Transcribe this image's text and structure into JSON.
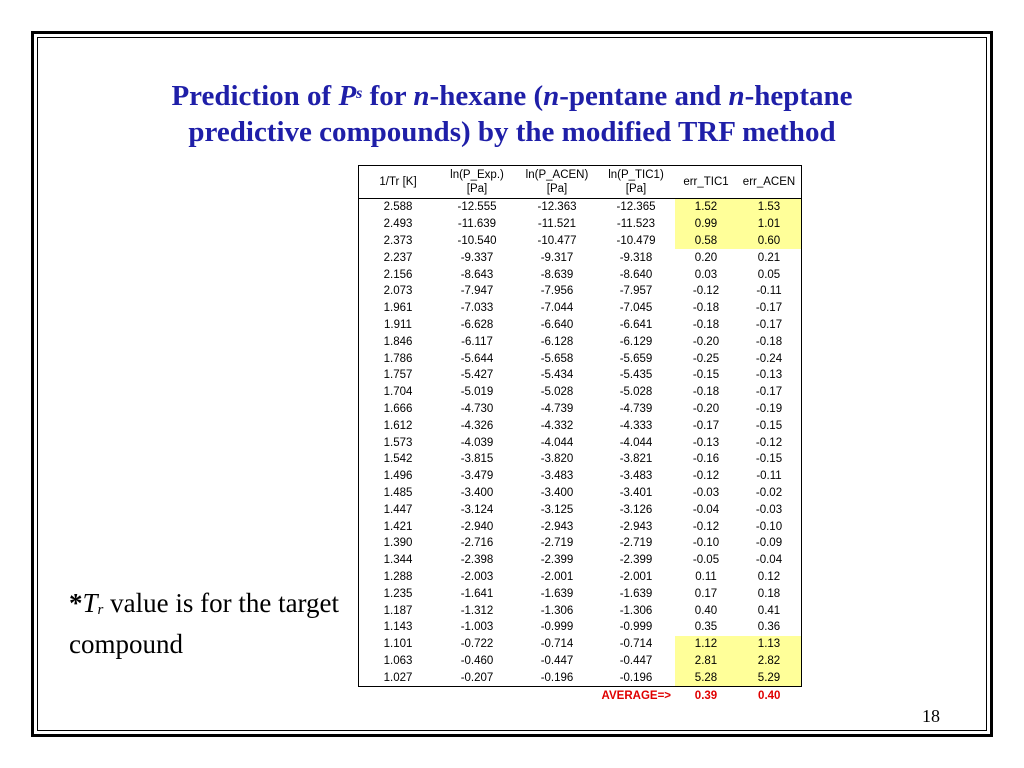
{
  "slide": {
    "title": {
      "part1": "Prediction of ",
      "p": "P",
      "s": "s",
      "part2": " for ",
      "n1": "n",
      "part3": "-hexane (",
      "n2": "n",
      "part4": "-pentane and ",
      "n3": "n",
      "part5": "-heptane",
      "line2": "predictive compounds) by the modified TRF method"
    },
    "note": {
      "star": "*",
      "t": "T",
      "r": "r",
      "rest": " value is for the target compound"
    },
    "page_number": "18"
  },
  "table": {
    "headers": [
      {
        "line1": "1/Tr [K]",
        "line2": ""
      },
      {
        "line1": "ln(P_Exp.)",
        "line2": "[Pa]"
      },
      {
        "line1": "ln(P_ACEN)",
        "line2": "[Pa]"
      },
      {
        "line1": "ln(P_TIC1)",
        "line2": "[Pa]"
      },
      {
        "line1": "err_TIC1",
        "line2": ""
      },
      {
        "line1": "err_ACEN",
        "line2": ""
      }
    ],
    "rows": [
      [
        "2.588",
        "-12.555",
        "-12.363",
        "-12.365",
        "1.52",
        "1.53"
      ],
      [
        "2.493",
        "-11.639",
        "-11.521",
        "-11.523",
        "0.99",
        "1.01"
      ],
      [
        "2.373",
        "-10.540",
        "-10.477",
        "-10.479",
        "0.58",
        "0.60"
      ],
      [
        "2.237",
        "-9.337",
        "-9.317",
        "-9.318",
        "0.20",
        "0.21"
      ],
      [
        "2.156",
        "-8.643",
        "-8.639",
        "-8.640",
        "0.03",
        "0.05"
      ],
      [
        "2.073",
        "-7.947",
        "-7.956",
        "-7.957",
        "-0.12",
        "-0.11"
      ],
      [
        "1.961",
        "-7.033",
        "-7.044",
        "-7.045",
        "-0.18",
        "-0.17"
      ],
      [
        "1.911",
        "-6.628",
        "-6.640",
        "-6.641",
        "-0.18",
        "-0.17"
      ],
      [
        "1.846",
        "-6.117",
        "-6.128",
        "-6.129",
        "-0.20",
        "-0.18"
      ],
      [
        "1.786",
        "-5.644",
        "-5.658",
        "-5.659",
        "-0.25",
        "-0.24"
      ],
      [
        "1.757",
        "-5.427",
        "-5.434",
        "-5.435",
        "-0.15",
        "-0.13"
      ],
      [
        "1.704",
        "-5.019",
        "-5.028",
        "-5.028",
        "-0.18",
        "-0.17"
      ],
      [
        "1.666",
        "-4.730",
        "-4.739",
        "-4.739",
        "-0.20",
        "-0.19"
      ],
      [
        "1.612",
        "-4.326",
        "-4.332",
        "-4.333",
        "-0.17",
        "-0.15"
      ],
      [
        "1.573",
        "-4.039",
        "-4.044",
        "-4.044",
        "-0.13",
        "-0.12"
      ],
      [
        "1.542",
        "-3.815",
        "-3.820",
        "-3.821",
        "-0.16",
        "-0.15"
      ],
      [
        "1.496",
        "-3.479",
        "-3.483",
        "-3.483",
        "-0.12",
        "-0.11"
      ],
      [
        "1.485",
        "-3.400",
        "-3.400",
        "-3.401",
        "-0.03",
        "-0.02"
      ],
      [
        "1.447",
        "-3.124",
        "-3.125",
        "-3.126",
        "-0.04",
        "-0.03"
      ],
      [
        "1.421",
        "-2.940",
        "-2.943",
        "-2.943",
        "-0.12",
        "-0.10"
      ],
      [
        "1.390",
        "-2.716",
        "-2.719",
        "-2.719",
        "-0.10",
        "-0.09"
      ],
      [
        "1.344",
        "-2.398",
        "-2.399",
        "-2.399",
        "-0.05",
        "-0.04"
      ],
      [
        "1.288",
        "-2.003",
        "-2.001",
        "-2.001",
        "0.11",
        "0.12"
      ],
      [
        "1.235",
        "-1.641",
        "-1.639",
        "-1.639",
        "0.17",
        "0.18"
      ],
      [
        "1.187",
        "-1.312",
        "-1.306",
        "-1.306",
        "0.40",
        "0.41"
      ],
      [
        "1.143",
        "-1.003",
        "-0.999",
        "-0.999",
        "0.35",
        "0.36"
      ],
      [
        "1.101",
        "-0.722",
        "-0.714",
        "-0.714",
        "1.12",
        "1.13"
      ],
      [
        "1.063",
        "-0.460",
        "-0.447",
        "-0.447",
        "2.81",
        "2.82"
      ],
      [
        "1.027",
        "-0.207",
        "-0.196",
        "-0.196",
        "5.28",
        "5.29"
      ]
    ],
    "highlighted_rows": [
      0,
      1,
      2,
      26,
      27,
      28
    ],
    "highlight_color": "#ffff99",
    "average": {
      "label": "AVERAGE=>",
      "err_tic1": "0.39",
      "err_acen": "0.40"
    },
    "average_color": "#e00000"
  },
  "colors": {
    "title": "#1f1fa8"
  }
}
